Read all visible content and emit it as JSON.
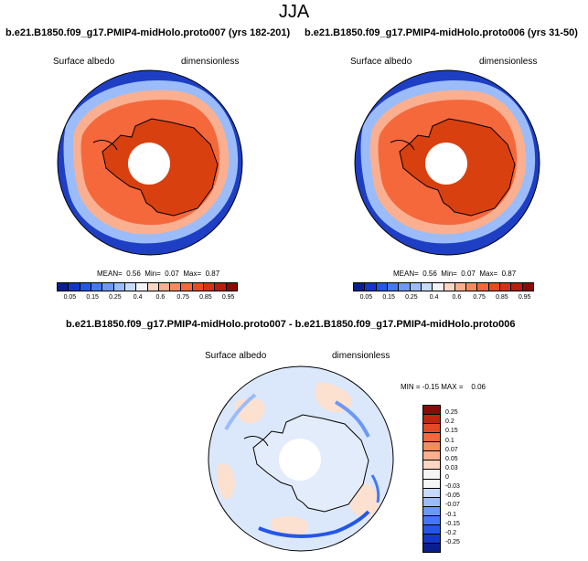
{
  "figure": {
    "season": "JJA",
    "left_panel": {
      "title": "b.e21.B1850.f09_g17.PMIP4-midHolo.proto007 (yrs 182-201)",
      "variable": "Surface albedo",
      "units": "dimensionless",
      "mean_label": "MEAN=",
      "mean_value": "0.56",
      "min_label": "Min=",
      "min_value": "0.07",
      "max_label": "Max=",
      "max_value": "0.87"
    },
    "right_panel": {
      "title": "b.e21.B1850.f09_g17.PMIP4-midHolo.proto006 (yrs 31-50)",
      "variable": "Surface albedo",
      "units": "dimensionless",
      "mean_label": "MEAN=",
      "mean_value": "0.56",
      "min_label": "Min=",
      "min_value": "0.07",
      "max_label": "Max=",
      "max_value": "0.87"
    },
    "diff_panel": {
      "title": "b.e21.B1850.f09_g17.PMIP4-midHolo.proto007 - b.e21.B1850.f09_g17.PMIP4-midHolo.proto006",
      "variable": "Surface albedo",
      "units": "dimensionless",
      "min_label": "MIN =",
      "min_value": "-0.15",
      "max_label": "MAX =",
      "max_value": "0.06"
    },
    "abs_colorbar": {
      "colors": [
        "#0a1f8f",
        "#1437c9",
        "#2456e8",
        "#4578f0",
        "#6d98f5",
        "#9bbcf8",
        "#c8dafc",
        "#f3f3f8",
        "#fcd6c5",
        "#fab090",
        "#f88a60",
        "#f4683c",
        "#e84a22",
        "#d43313",
        "#b81e0b",
        "#8c0a05"
      ],
      "tick_labels": [
        "0.05",
        "0.15",
        "0.25",
        "0.4",
        "0.6",
        "0.75",
        "0.85",
        "0.95"
      ]
    },
    "diff_colorbar": {
      "colors": [
        "#8c0a05",
        "#c0260e",
        "#e24a25",
        "#f4683c",
        "#f88a60",
        "#fab090",
        "#fcd6c5",
        "#f5f5f5",
        "#f5f5f5",
        "#c8dafc",
        "#9bbcf8",
        "#6d98f5",
        "#4578f0",
        "#2456e8",
        "#1437c9",
        "#0a1f8f"
      ],
      "tick_labels": [
        "0.25",
        "0.2",
        "0.15",
        "0.1",
        "0.07",
        "0.05",
        "0.03",
        "0",
        "-0.03",
        "-0.05",
        "-0.07",
        "-0.1",
        "-0.15",
        "-0.2",
        "-0.25"
      ]
    }
  }
}
